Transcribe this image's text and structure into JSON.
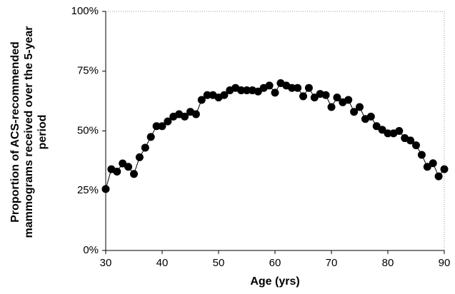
{
  "chart_data": {
    "type": "line",
    "xlabel": "Age (yrs)",
    "ylabel": [
      "Proportion of ACS-recommended",
      "mammograms received over the 5-year",
      "period"
    ],
    "x": [
      30,
      31,
      32,
      33,
      34,
      35,
      36,
      37,
      38,
      39,
      40,
      41,
      42,
      43,
      44,
      45,
      46,
      47,
      48,
      49,
      50,
      51,
      52,
      53,
      54,
      55,
      56,
      57,
      58,
      59,
      60,
      61,
      62,
      63,
      64,
      65,
      66,
      67,
      68,
      69,
      70,
      71,
      72,
      73,
      74,
      75,
      76,
      77,
      78,
      79,
      80,
      81,
      82,
      83,
      84,
      85,
      86,
      87,
      88,
      89,
      90
    ],
    "series": [
      {
        "name": "Proportion",
        "color": "#000000",
        "values": [
          25.7,
          34,
          33,
          36.4,
          35,
          32,
          39,
          43,
          47.5,
          52,
          52,
          54,
          56,
          57,
          56,
          58,
          57,
          63,
          65,
          65,
          64,
          65,
          67,
          68,
          67,
          67,
          67,
          66.5,
          68,
          69,
          66,
          70,
          69,
          68,
          68,
          64.5,
          68,
          64,
          65.5,
          65,
          60,
          64,
          62,
          63,
          58,
          60,
          55,
          56,
          52,
          50.5,
          49,
          49,
          50,
          47,
          46,
          44,
          40,
          35,
          36.5,
          31,
          34
        ]
      }
    ],
    "xlim": [
      30,
      90
    ],
    "xticks": [
      30,
      40,
      50,
      60,
      70,
      80,
      90
    ],
    "ylim": [
      0,
      100
    ],
    "yticks": [
      {
        "value": 0,
        "label": "0%"
      },
      {
        "value": 25,
        "label": "25%"
      },
      {
        "value": 50,
        "label": "50%"
      },
      {
        "value": 75,
        "label": "75%"
      },
      {
        "value": 100,
        "label": "100%"
      }
    ],
    "grid": false
  }
}
